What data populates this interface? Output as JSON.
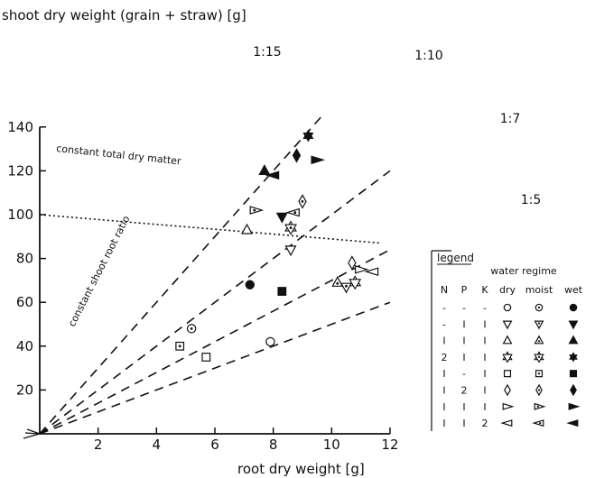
{
  "chart_data": {
    "type": "scatter",
    "title": "shoot dry weight (grain + straw) [g]",
    "xlabel": "root dry weight [g]",
    "ylabel": "shoot dry weight (grain + straw) [g]",
    "xlim": [
      0,
      12
    ],
    "ylim": [
      0,
      140
    ],
    "x_ticks": [
      "2",
      "4",
      "6",
      "8",
      "10",
      "12"
    ],
    "y_ticks": [
      "20",
      "40",
      "60",
      "80",
      "100",
      "120",
      "140"
    ],
    "grid": false,
    "legend_position": "bottom-right",
    "ratio_lines": [
      {
        "label": "1:15",
        "slope": 15
      },
      {
        "label": "1:10",
        "slope": 10
      },
      {
        "label": "1:7",
        "slope": 7
      },
      {
        "label": "1:5",
        "slope": 5
      }
    ],
    "annotations": {
      "constant_ratio": "constant shoot root ratio",
      "constant_total": "constant total dry matter"
    },
    "total_dry_matter_line": {
      "x": [
        0,
        11.7
      ],
      "y": [
        100,
        87
      ]
    },
    "series": [
      {
        "name": "dry",
        "points": [
          {
            "t": "- - -",
            "x": 7.9,
            "y": 42,
            "shape": "circle"
          },
          {
            "t": "- I I",
            "x": 8.6,
            "y": 84,
            "shape": "tri-down"
          },
          {
            "t": "I I I",
            "x": 7.1,
            "y": 93,
            "shape": "tri-up"
          },
          {
            "t": "2 I I",
            "x": 10.8,
            "y": 69,
            "shape": "star"
          },
          {
            "t": "I - I",
            "x": 5.7,
            "y": 35,
            "shape": "square"
          },
          {
            "t": "I 2 I",
            "x": 10.7,
            "y": 78,
            "shape": "diamond"
          },
          {
            "t": "I I I",
            "x": 11,
            "y": 75,
            "shape": "tri-right"
          },
          {
            "t": "I I 2",
            "x": 11.4,
            "y": 74,
            "shape": "tri-left"
          }
        ]
      },
      {
        "name": "moist",
        "points": [
          {
            "t": "- - -",
            "x": 5.2,
            "y": 48,
            "shape": "circle"
          },
          {
            "t": "- I I",
            "x": 10.5,
            "y": 67,
            "shape": "tri-down"
          },
          {
            "t": "I I I",
            "x": 10.2,
            "y": 69,
            "shape": "tri-up"
          },
          {
            "t": "2 I I",
            "x": 8.6,
            "y": 94,
            "shape": "star"
          },
          {
            "t": "I - I",
            "x": 4.8,
            "y": 40,
            "shape": "square"
          },
          {
            "t": "I 2 I",
            "x": 9,
            "y": 106,
            "shape": "diamond"
          },
          {
            "t": "I I I",
            "x": 7.4,
            "y": 102,
            "shape": "tri-right"
          },
          {
            "t": "I I 2",
            "x": 8.7,
            "y": 101,
            "shape": "tri-left"
          }
        ]
      },
      {
        "name": "wet",
        "points": [
          {
            "t": "- - -",
            "x": 7.2,
            "y": 68,
            "shape": "circle"
          },
          {
            "t": "- I I",
            "x": 8.3,
            "y": 99,
            "shape": "tri-down"
          },
          {
            "t": "I I I",
            "x": 7.7,
            "y": 120,
            "shape": "tri-up"
          },
          {
            "t": "2 I I",
            "x": 9.2,
            "y": 136,
            "shape": "star"
          },
          {
            "t": "I - I",
            "x": 8.3,
            "y": 65,
            "shape": "square"
          },
          {
            "t": "I 2 I",
            "x": 8.8,
            "y": 127,
            "shape": "diamond"
          },
          {
            "t": "I I I",
            "x": 9.5,
            "y": 125,
            "shape": "tri-right"
          },
          {
            "t": "I I 2",
            "x": 8,
            "y": 118,
            "shape": "tri-left"
          }
        ]
      }
    ],
    "legend": {
      "title": "legend",
      "group_label": "water regime",
      "headers": [
        "N",
        "P",
        "K",
        "dry",
        "moist",
        "wet"
      ],
      "rows": [
        {
          "n": "-",
          "p": "-",
          "k": "-",
          "shape": "circle"
        },
        {
          "n": "-",
          "p": "I",
          "k": "I",
          "shape": "tri-down"
        },
        {
          "n": "I",
          "p": "I",
          "k": "I",
          "shape": "tri-up"
        },
        {
          "n": "2",
          "p": "I",
          "k": "I",
          "shape": "star"
        },
        {
          "n": "I",
          "p": "-",
          "k": "I",
          "shape": "square"
        },
        {
          "n": "I",
          "p": "2",
          "k": "I",
          "shape": "diamond"
        },
        {
          "n": "I",
          "p": "I",
          "k": "I",
          "shape": "tri-right"
        },
        {
          "n": "I",
          "p": "I",
          "k": "2",
          "shape": "tri-left"
        }
      ]
    }
  }
}
